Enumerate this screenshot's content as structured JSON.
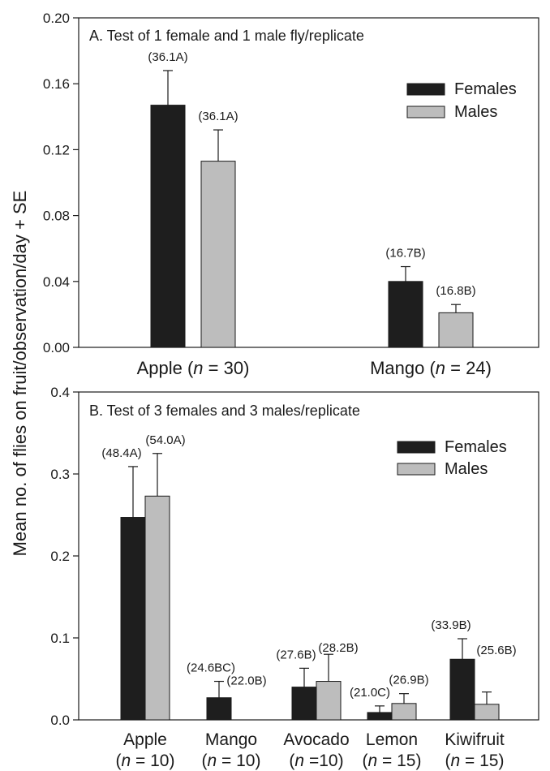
{
  "ylabel": "Mean no. of flies on fruit/observation/day + SE",
  "chart_data": [
    {
      "type": "bar",
      "title": "A. Test of 1 female and 1 male fly/replicate",
      "categories": [
        {
          "name": "Apple",
          "n": "30"
        },
        {
          "name": "Mango",
          "n": "24"
        }
      ],
      "series": [
        {
          "name": "Females",
          "color": "#1e1e1e",
          "values": [
            0.147,
            0.04
          ],
          "se": [
            0.021,
            0.009
          ],
          "labels": [
            "(36.1A)",
            "(16.7B)"
          ]
        },
        {
          "name": "Males",
          "color": "#bdbdbd",
          "values": [
            0.113,
            0.021
          ],
          "se": [
            0.019,
            0.005
          ],
          "labels": [
            "(36.1A)",
            "(16.8B)"
          ]
        }
      ],
      "ylim": [
        0,
        0.2
      ],
      "yticks": [
        "0.00",
        "0.04",
        "0.08",
        "0.12",
        "0.16",
        "0.20"
      ],
      "legend": "upper right"
    },
    {
      "type": "bar",
      "title": "B. Test of 3 females and 3 males/replicate",
      "categories": [
        {
          "name": "Apple",
          "n": "10"
        },
        {
          "name": "Mango",
          "n": "10"
        },
        {
          "name": "Avocado",
          "n": "10"
        },
        {
          "name": "Lemon",
          "n": "15"
        },
        {
          "name": "Kiwifruit",
          "n": "15"
        }
      ],
      "series": [
        {
          "name": "Females",
          "color": "#1e1e1e",
          "values": [
            0.247,
            0.027,
            0.04,
            0.009,
            0.074
          ],
          "se": [
            0.062,
            0.02,
            0.023,
            0.008,
            0.025
          ],
          "labels": [
            "(48.4A)",
            "(24.6BC)",
            "(27.6B)",
            "(21.0C)",
            "(33.9B)"
          ]
        },
        {
          "name": "Males",
          "color": "#bdbdbd",
          "values": [
            0.273,
            0.0,
            0.047,
            0.02,
            0.019
          ],
          "se": [
            0.052,
            0.0,
            0.033,
            0.012,
            0.015
          ],
          "labels": [
            "(54.0A)",
            "(22.0B)",
            "(28.2B)",
            "(26.9B)",
            "(25.6B)"
          ]
        }
      ],
      "ylim": [
        0,
        0.4
      ],
      "yticks": [
        "0.0",
        "0.1",
        "0.2",
        "0.3",
        "0.4"
      ],
      "legend": "upper right"
    }
  ]
}
